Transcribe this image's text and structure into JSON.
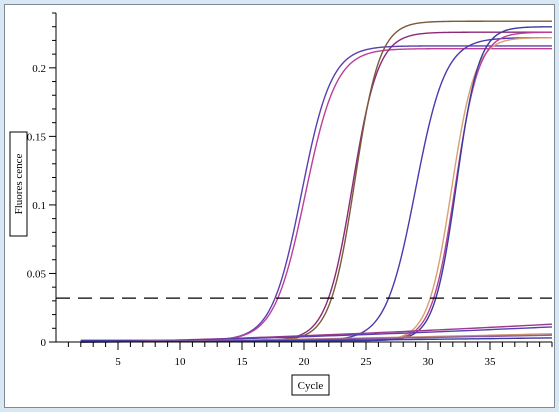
{
  "chart_data": {
    "type": "line",
    "xlabel": "Cycle",
    "ylabel": "Fluores cence",
    "xlim": [
      0,
      40
    ],
    "ylim": [
      0,
      0.24
    ],
    "x_ticks": [
      5,
      10,
      15,
      20,
      25,
      30,
      35
    ],
    "y_ticks": [
      0,
      0.05,
      0.1,
      0.15,
      0.2
    ],
    "y_tick_labels": [
      "0",
      "0.05",
      "0.1",
      "0.15",
      "0.2"
    ],
    "threshold": 0.032,
    "grid": false,
    "series": [
      {
        "color": "#5a3fb0",
        "kind": "sigmoid",
        "baseline": 0.001,
        "plateau": 0.216,
        "midpoint": 19.8,
        "slope": 1.2
      },
      {
        "color": "#b8409a",
        "kind": "sigmoid",
        "baseline": 0.001,
        "plateau": 0.214,
        "midpoint": 20.1,
        "slope": 1.25
      },
      {
        "color": "#8a2a7a",
        "kind": "sigmoid",
        "baseline": 0.001,
        "plateau": 0.226,
        "midpoint": 23.9,
        "slope": 1.05
      },
      {
        "color": "#7a5a3a",
        "kind": "sigmoid",
        "baseline": 0.001,
        "plateau": 0.234,
        "midpoint": 24.1,
        "slope": 1.0
      },
      {
        "color": "#4a3ab0",
        "kind": "sigmoid",
        "baseline": 0.001,
        "plateau": 0.222,
        "midpoint": 29.0,
        "slope": 1.2
      },
      {
        "color": "#d8a070",
        "kind": "sigmoid",
        "baseline": 0.001,
        "plateau": 0.222,
        "midpoint": 31.9,
        "slope": 0.95
      },
      {
        "color": "#b8409a",
        "kind": "sigmoid",
        "baseline": 0.001,
        "plateau": 0.226,
        "midpoint": 32.2,
        "slope": 0.95
      },
      {
        "color": "#3a3aa0",
        "kind": "sigmoid",
        "baseline": 0.001,
        "plateau": 0.23,
        "midpoint": 32.3,
        "slope": 0.9
      },
      {
        "color": "#9a3a8a",
        "kind": "linear",
        "start_x": 2,
        "start_y": 0.0,
        "end_x": 40,
        "end_y": 0.013
      },
      {
        "color": "#5a3fb0",
        "kind": "linear",
        "start_x": 2,
        "start_y": 0.0,
        "end_x": 40,
        "end_y": 0.011
      },
      {
        "color": "#c89070",
        "kind": "linear",
        "start_x": 2,
        "start_y": 0.0,
        "end_x": 40,
        "end_y": 0.006
      },
      {
        "color": "#8a5aa0",
        "kind": "linear",
        "start_x": 2,
        "start_y": 0.0,
        "end_x": 40,
        "end_y": 0.005
      },
      {
        "color": "#3a3aa0",
        "kind": "linear",
        "start_x": 2,
        "start_y": 0.0,
        "end_x": 40,
        "end_y": 0.003
      }
    ]
  }
}
